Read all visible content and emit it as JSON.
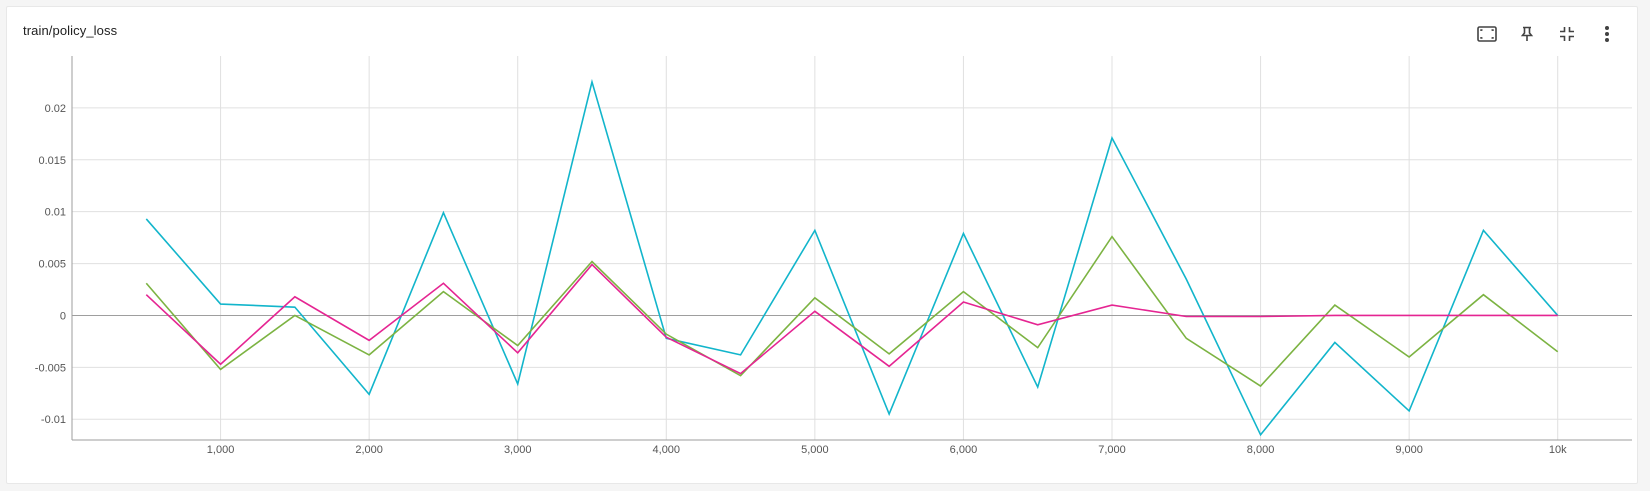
{
  "card": {
    "title": "train/policy_loss"
  },
  "toolbar": {
    "icons": [
      "fit-to-data-icon",
      "pin-icon",
      "collapse-icon",
      "more-vert-icon"
    ]
  },
  "colors": {
    "grid": "#e0e0e0",
    "axis": "#9e9e9e",
    "zero_line": "#9e9e9e"
  },
  "chart_data": {
    "type": "line",
    "title": "train/policy_loss",
    "xlabel": "",
    "ylabel": "",
    "xlim": [
      0,
      10500
    ],
    "ylim": [
      -0.012,
      0.025
    ],
    "x_ticks": [
      1000,
      2000,
      3000,
      4000,
      5000,
      6000,
      7000,
      8000,
      9000,
      10000
    ],
    "x_tick_labels": [
      "1,000",
      "2,000",
      "3,000",
      "4,000",
      "5,000",
      "6,000",
      "7,000",
      "8,000",
      "9,000",
      "10k"
    ],
    "y_ticks": [
      -0.01,
      -0.005,
      0,
      0.005,
      0.01,
      0.015,
      0.02
    ],
    "y_tick_labels": [
      "-0.01",
      "-0.005",
      "0",
      "0.005",
      "0.01",
      "0.015",
      "0.02"
    ],
    "grid": true,
    "x": [
      500,
      1000,
      1500,
      2000,
      2500,
      3000,
      3500,
      4000,
      4500,
      5000,
      5500,
      6000,
      6500,
      7000,
      7500,
      8000,
      8500,
      9000,
      9500,
      10000
    ],
    "series": [
      {
        "color": "#12b5cb",
        "values": [
          0.0093,
          0.0011,
          0.0008,
          -0.0076,
          0.0099,
          -0.0066,
          0.0225,
          -0.0022,
          -0.0038,
          0.0082,
          -0.0095,
          0.0079,
          -0.0069,
          0.0171,
          0.0035,
          -0.0115,
          -0.0026,
          -0.0092,
          0.0082,
          0.0
        ]
      },
      {
        "color": "#7cb342",
        "values": [
          0.0031,
          -0.0052,
          0.0,
          -0.0038,
          0.0023,
          -0.0029,
          0.0052,
          -0.0018,
          -0.0058,
          0.0017,
          -0.0037,
          0.0023,
          -0.0031,
          0.0076,
          -0.0022,
          -0.0068,
          0.001,
          -0.004,
          0.002,
          -0.0035
        ]
      },
      {
        "color": "#e52592",
        "values": [
          0.002,
          -0.0047,
          0.0018,
          -0.0024,
          0.0031,
          -0.0036,
          0.0049,
          -0.0021,
          -0.0056,
          0.0004,
          -0.0049,
          0.0013,
          -0.0009,
          0.001,
          -0.0001,
          -0.0001,
          0.0,
          0.0,
          0.0,
          0.0
        ]
      }
    ]
  }
}
